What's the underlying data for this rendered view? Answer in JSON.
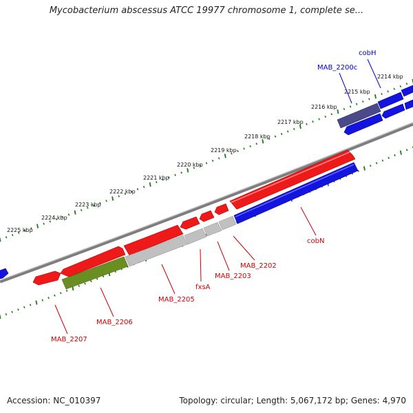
{
  "title": "Mycobacterium abscessus ATCC 19977 chromosome 1, complete se...",
  "footer": {
    "accession": "Accession: NC_010397",
    "summary": "Topology: circular; Length: 5,067,172 bp; Genes: 4,970"
  },
  "colors": {
    "tick": "#1a7a1a",
    "backbone": "#7a7a7a",
    "forward_gene": "#ee1111",
    "reverse_gene": "#1111dd",
    "pseudo_gene": "#bbbbbb",
    "olive_gene": "#6b8e23",
    "navy_gene": "#4a4a8a",
    "label_forward": "#cc0000",
    "label_reverse": "#0000cc"
  },
  "ruler": {
    "ticks": [
      "2225 kbp",
      "2224 kbp",
      "2223 kbp",
      "2222 kbp",
      "2221 kbp",
      "2220 kbp",
      "2219 kbp",
      "2218 kbp",
      "2217 kbp",
      "2216 kbp",
      "2215 kbp",
      "2214 kbp"
    ]
  },
  "genes": {
    "top_labels": [
      "cobH",
      "MAB_2200c"
    ],
    "bottom_labels": [
      "cobN",
      "MAB_2202",
      "MAB_2203",
      "fxsA",
      "MAB_2205",
      "MAB_2206",
      "MAB_2207"
    ]
  }
}
